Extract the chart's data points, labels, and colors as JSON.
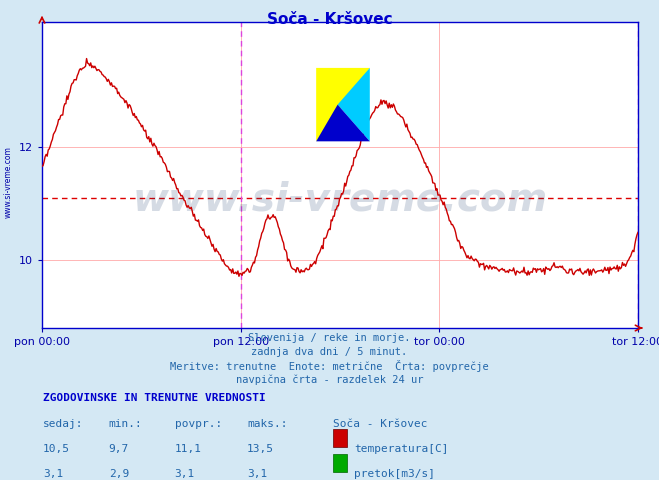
{
  "title": "Soča - Kršovec",
  "title_color": "#0000cc",
  "bg_color": "#d4e8f4",
  "plot_bg_color": "#ffffff",
  "border_color": "#0000cc",
  "grid_color": "#ffaaaa",
  "xlabel_ticks": [
    "pon 00:00",
    "pon 12:00",
    "tor 00:00",
    "tor 12:00"
  ],
  "xlabel_tick_positions": [
    0.0,
    0.3333,
    0.6667,
    1.0
  ],
  "yticks": [
    10,
    12
  ],
  "ylim": [
    8.8,
    14.2
  ],
  "avg_line_y": 11.1,
  "avg_line_color": "#dd0000",
  "vline_positions": [
    0.3333,
    1.0
  ],
  "vline_color": "#dd44dd",
  "watermark": "www.si-vreme.com",
  "watermark_color": "#1a3a6a",
  "watermark_alpha": 0.18,
  "watermark_size": 28,
  "left_label": "www.si-vreme.com",
  "left_label_color": "#0000aa",
  "temp_color": "#cc0000",
  "flow_color": "#00aa00",
  "temp_lw": 1.0,
  "flow_lw": 1.2,
  "subtitle_lines": [
    "Slovenija / reke in morje.",
    "zadnja dva dni / 5 minut.",
    "Meritve: trenutne  Enote: metrične  Črta: povprečje",
    "navpična črta - razdelek 24 ur"
  ],
  "subtitle_color": "#2266aa",
  "table_header": "ZGODOVINSKE IN TRENUTNE VREDNOSTI",
  "table_header_color": "#0000cc",
  "table_cols": [
    "sedaj:",
    "min.:",
    "povpr.:",
    "maks.:",
    "Soča - Kršovec"
  ],
  "table_temp": [
    "10,5",
    "9,7",
    "11,1",
    "13,5"
  ],
  "table_flow": [
    "3,1",
    "2,9",
    "3,1",
    "3,1"
  ],
  "temp_label": "temperatura[C]",
  "flow_label": "pretok[m3/s]",
  "n_points": 576
}
